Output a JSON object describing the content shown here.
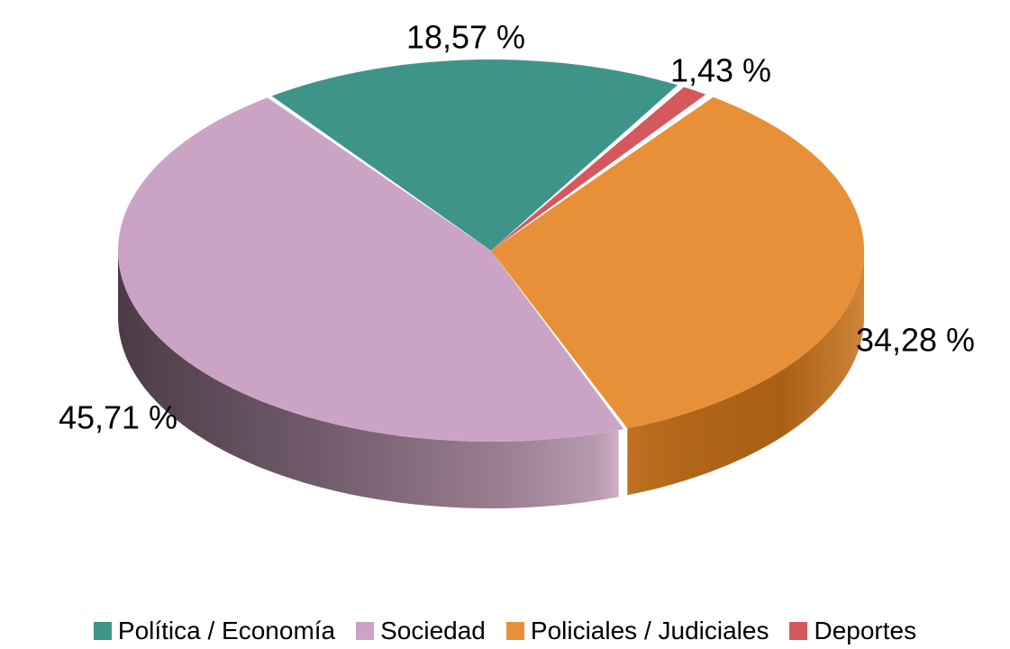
{
  "chart_data": {
    "type": "pie",
    "style": "3d",
    "title": "",
    "legend_position": "bottom",
    "background": "#ffffff",
    "text_color": "#000000",
    "start_angle_deg": 60,
    "direction": "counterclockwise",
    "slices": [
      {
        "label": "Política / Economía",
        "value": 18.57,
        "value_label": "18,57 %",
        "color": "#3f948a",
        "side_stops": null
      },
      {
        "label": "Sociedad",
        "value": 45.71,
        "value_label": "45,71 %",
        "color": "#cba4c5",
        "side_stops": [
          [
            0,
            "#4c3b47"
          ],
          [
            0.38,
            "#6f5968"
          ],
          [
            0.8,
            "#9d8194"
          ],
          [
            0.96,
            "#b89bae"
          ],
          [
            1,
            "#cfb0c6"
          ]
        ]
      },
      {
        "label": "Policiales / Judiciales",
        "value": 34.28,
        "value_label": "34,28 %",
        "color": "#e89038",
        "side_stops": [
          [
            0,
            "#bf7120"
          ],
          [
            0.2,
            "#b2671a"
          ],
          [
            0.65,
            "#a96014"
          ],
          [
            1,
            "#ce8439"
          ]
        ]
      },
      {
        "label": "Deportes",
        "value": 1.43,
        "value_label": "1,43 %",
        "color": "#d5585d",
        "side_stops": null
      }
    ]
  }
}
